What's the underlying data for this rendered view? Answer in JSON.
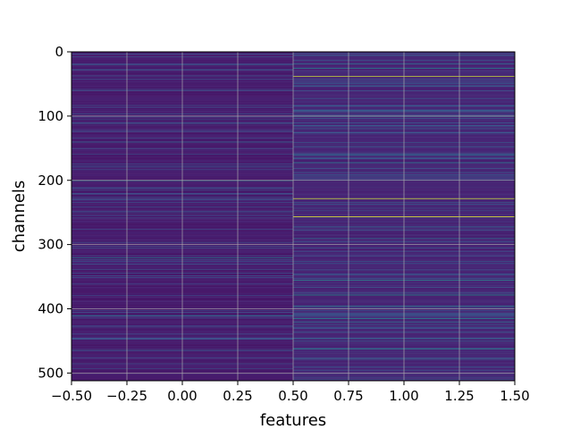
{
  "chart_data": {
    "type": "heatmap",
    "title": "",
    "xlabel": "features",
    "ylabel": "channels",
    "xlim": [
      -0.5,
      1.5
    ],
    "ylim": [
      512,
      0
    ],
    "y_inverted": true,
    "columns": 2,
    "rows": 512,
    "colormap": "viridis",
    "grid": true,
    "x_ticks": [
      -0.5,
      -0.25,
      0.0,
      0.25,
      0.5,
      0.75,
      1.0,
      1.25,
      1.5
    ],
    "x_tick_labels": [
      "−0.50",
      "−0.25",
      "0.00",
      "0.25",
      "0.50",
      "0.75",
      "1.00",
      "1.25",
      "1.50"
    ],
    "y_ticks": [
      0,
      100,
      200,
      300,
      400,
      500
    ],
    "y_tick_labels": [
      "0",
      "100",
      "200",
      "300",
      "400",
      "500"
    ],
    "colors": {
      "low": "#2d1160",
      "mid": "#3b528b",
      "teal": "#21908d",
      "green": "#5ec962",
      "high": "#fde725",
      "grid": "#b0b0b0"
    },
    "column_profiles": [
      {
        "column": 0,
        "baseline": 0.08,
        "notable_rows": [
          {
            "row": 20,
            "value": 0.35
          },
          {
            "row": 60,
            "value": 0.3
          },
          {
            "row": 110,
            "value": 0.35
          },
          {
            "row": 140,
            "value": 0.4
          },
          {
            "row": 200,
            "value": 0.55
          },
          {
            "row": 320,
            "value": 0.5
          },
          {
            "row": 410,
            "value": 0.45
          }
        ]
      },
      {
        "column": 1,
        "baseline": 0.12,
        "notable_rows": [
          {
            "row": 18,
            "value": 0.45
          },
          {
            "row": 25,
            "value": 0.55
          },
          {
            "row": 38,
            "value": 0.95
          },
          {
            "row": 100,
            "value": 0.5
          },
          {
            "row": 160,
            "value": 0.45
          },
          {
            "row": 172,
            "value": 0.5
          },
          {
            "row": 228,
            "value": 0.95
          },
          {
            "row": 256,
            "value": 1.0
          },
          {
            "row": 272,
            "value": 0.4
          },
          {
            "row": 290,
            "value": 0.45
          },
          {
            "row": 355,
            "value": 0.55
          },
          {
            "row": 378,
            "value": 0.6
          },
          {
            "row": 395,
            "value": 0.5
          },
          {
            "row": 415,
            "value": 0.55
          },
          {
            "row": 420,
            "value": 0.45
          },
          {
            "row": 462,
            "value": 0.5
          },
          {
            "row": 478,
            "value": 0.4
          }
        ]
      }
    ]
  }
}
